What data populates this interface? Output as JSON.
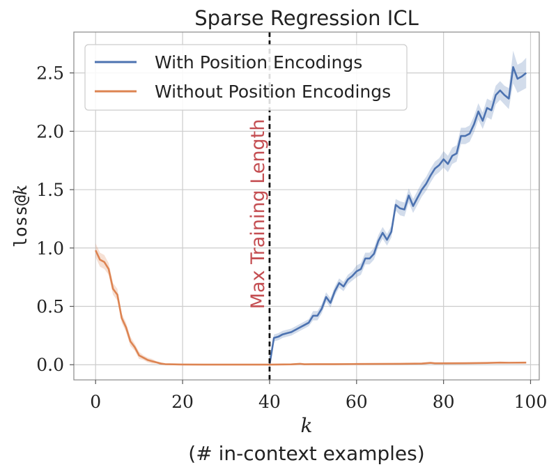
{
  "chart_data": {
    "type": "line",
    "title": "Sparse Regression ICL",
    "xlabel": "k",
    "xlabel_sub": "(# in-context examples)",
    "ylabel_mono": "loss@",
    "ylabel_italic": "k",
    "xlim": [
      -5,
      102
    ],
    "ylim": [
      -0.13,
      2.85
    ],
    "xticks": [
      0,
      20,
      40,
      60,
      80,
      100
    ],
    "xtick_labels": [
      "0",
      "20",
      "40",
      "60",
      "80",
      "100"
    ],
    "yticks": [
      0.0,
      0.5,
      1.0,
      1.5,
      2.0,
      2.5
    ],
    "ytick_labels": [
      "0.0",
      "0.5",
      "1.0",
      "1.5",
      "2.0",
      "2.5"
    ],
    "grid": true,
    "legend_position": "top-left",
    "vline": {
      "x": 40,
      "label": "Max Training Length",
      "color": "#c44e52"
    },
    "series": [
      {
        "name": "With Position Encodings",
        "color": "#4c72b0",
        "x": [
          40,
          41,
          42,
          43,
          44,
          45,
          46,
          47,
          48,
          49,
          50,
          51,
          52,
          53,
          54,
          55,
          56,
          57,
          58,
          59,
          60,
          61,
          62,
          63,
          64,
          65,
          66,
          67,
          68,
          69,
          70,
          71,
          72,
          73,
          74,
          75,
          76,
          77,
          78,
          79,
          80,
          81,
          82,
          83,
          84,
          85,
          86,
          87,
          88,
          89,
          90,
          91,
          92,
          93,
          94,
          95,
          96,
          97,
          98,
          99
        ],
        "values": [
          0.0,
          0.23,
          0.24,
          0.26,
          0.27,
          0.28,
          0.3,
          0.32,
          0.34,
          0.36,
          0.42,
          0.42,
          0.48,
          0.58,
          0.53,
          0.63,
          0.7,
          0.67,
          0.73,
          0.76,
          0.8,
          0.82,
          0.91,
          0.91,
          0.95,
          1.06,
          1.13,
          1.07,
          1.14,
          1.37,
          1.34,
          1.33,
          1.45,
          1.36,
          1.43,
          1.5,
          1.55,
          1.62,
          1.68,
          1.71,
          1.76,
          1.72,
          1.79,
          1.81,
          1.96,
          1.96,
          1.98,
          2.06,
          2.17,
          2.09,
          2.2,
          2.18,
          2.31,
          2.35,
          2.31,
          2.28,
          2.55,
          2.45,
          2.47,
          2.5
        ],
        "ci_halfwidth": [
          0.0,
          0.03,
          0.03,
          0.03,
          0.03,
          0.03,
          0.03,
          0.03,
          0.03,
          0.03,
          0.04,
          0.04,
          0.04,
          0.04,
          0.04,
          0.04,
          0.04,
          0.04,
          0.04,
          0.04,
          0.05,
          0.05,
          0.05,
          0.05,
          0.05,
          0.05,
          0.05,
          0.05,
          0.05,
          0.05,
          0.06,
          0.06,
          0.06,
          0.06,
          0.06,
          0.06,
          0.06,
          0.06,
          0.06,
          0.06,
          0.07,
          0.07,
          0.07,
          0.07,
          0.07,
          0.07,
          0.07,
          0.07,
          0.07,
          0.07,
          0.08,
          0.08,
          0.08,
          0.08,
          0.08,
          0.09,
          0.14,
          0.12,
          0.12,
          0.13
        ]
      },
      {
        "name": "Without Position Encodings",
        "color": "#dd8452",
        "x": [
          0,
          1,
          2,
          3,
          4,
          5,
          6,
          7,
          8,
          9,
          10,
          11,
          12,
          13,
          14,
          15,
          16,
          18,
          20,
          25,
          30,
          35,
          40,
          45,
          47,
          48,
          50,
          55,
          60,
          65,
          70,
          75,
          77,
          78,
          80,
          85,
          90,
          93,
          95,
          99
        ],
        "values": [
          0.98,
          0.9,
          0.88,
          0.82,
          0.65,
          0.6,
          0.4,
          0.32,
          0.2,
          0.15,
          0.08,
          0.06,
          0.04,
          0.03,
          0.02,
          0.01,
          0.005,
          0.003,
          0.002,
          0.001,
          0.001,
          0.001,
          0.001,
          0.003,
          0.008,
          0.004,
          0.005,
          0.005,
          0.006,
          0.007,
          0.008,
          0.01,
          0.016,
          0.012,
          0.012,
          0.013,
          0.015,
          0.018,
          0.017,
          0.018
        ],
        "ci_halfwidth": [
          0.06,
          0.06,
          0.06,
          0.05,
          0.05,
          0.05,
          0.04,
          0.04,
          0.04,
          0.03,
          0.03,
          0.02,
          0.02,
          0.02,
          0.01,
          0.01,
          0.005,
          0.003,
          0.003,
          0.002,
          0.002,
          0.002,
          0.002,
          0.002,
          0.003,
          0.002,
          0.002,
          0.002,
          0.002,
          0.002,
          0.003,
          0.003,
          0.004,
          0.003,
          0.003,
          0.003,
          0.004,
          0.004,
          0.004,
          0.004
        ]
      }
    ]
  }
}
